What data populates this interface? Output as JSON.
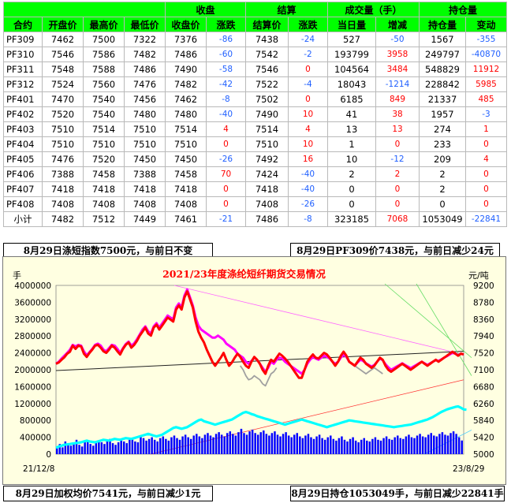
{
  "table": {
    "group_headers": {
      "close": "收盘",
      "settle": "结算",
      "volume": "成交量（手）",
      "oi": "持仓量"
    },
    "columns": [
      "合约",
      "开盘价",
      "最高价",
      "最低价",
      "收盘价",
      "涨跌",
      "结算价",
      "涨跌",
      "当日量",
      "增减",
      "持仓量",
      "变动"
    ],
    "rows": [
      [
        "PF309",
        "7462",
        "7500",
        "7322",
        "7376",
        "-86",
        "7438",
        "-24",
        "527",
        "-50",
        "1567",
        "-355"
      ],
      [
        "PF310",
        "7546",
        "7586",
        "7482",
        "7486",
        "-60",
        "7542",
        "-2",
        "193799",
        "3958",
        "249797",
        "-40870"
      ],
      [
        "PF311",
        "7548",
        "7588",
        "7486",
        "7490",
        "-58",
        "7546",
        "0",
        "104564",
        "3484",
        "548829",
        "11912"
      ],
      [
        "PF312",
        "7524",
        "7560",
        "7476",
        "7482",
        "-42",
        "7522",
        "-4",
        "18043",
        "-1214",
        "228842",
        "5985"
      ],
      [
        "PF401",
        "7470",
        "7540",
        "7456",
        "7462",
        "-8",
        "7502",
        "0",
        "6185",
        "849",
        "21337",
        "485"
      ],
      [
        "PF402",
        "7520",
        "7540",
        "7480",
        "7480",
        "-40",
        "7490",
        "10",
        "41",
        "38",
        "1957",
        "-3"
      ],
      [
        "PF403",
        "7510",
        "7514",
        "7510",
        "7514",
        "4",
        "7514",
        "4",
        "13",
        "13",
        "274",
        "1"
      ],
      [
        "PF404",
        "7510",
        "7510",
        "7510",
        "7510",
        "0",
        "7510",
        "10",
        "1",
        "0",
        "233",
        "0"
      ],
      [
        "PF405",
        "7476",
        "7520",
        "7450",
        "7450",
        "-26",
        "7492",
        "16",
        "10",
        "-12",
        "209",
        "4"
      ],
      [
        "PF406",
        "7388",
        "7458",
        "7388",
        "7458",
        "70",
        "7424",
        "-40",
        "2",
        "2",
        "2",
        "0"
      ],
      [
        "PF407",
        "7418",
        "7418",
        "7418",
        "7418",
        "0",
        "7418",
        "-40",
        "0",
        "0",
        "2",
        "0"
      ],
      [
        "PF408",
        "7408",
        "7408",
        "7408",
        "7408",
        "0",
        "7408",
        "-26",
        "0",
        "0",
        "0",
        "0"
      ],
      [
        "小计",
        "7482",
        "7512",
        "7449",
        "7461",
        "-21",
        "7486",
        "-8",
        "323185",
        "7068",
        "1053049",
        "-22841"
      ]
    ]
  },
  "captions": {
    "top_left": "8月29日涤短指数7500元，与前日不变",
    "top_right": "8月29日PF309价7438元，与前日减少24元",
    "bottom_left": "8月29日加权均价7541元，与前日减少1元",
    "bottom_right": "8月29日持仓1053049手，与前日减少22841手"
  },
  "chart_data": {
    "type": "line",
    "title": "2021/23年度涤纶短纤期货交易情况",
    "ylabel_left": "手",
    "ylabel_right": "元/吨",
    "x_start_label": "21/12/8",
    "x_end_label": "23/8/29",
    "ylim_left": [
      0,
      4000000
    ],
    "yticks_left": [
      "0",
      "400000",
      "800000",
      "1200000",
      "1600000",
      "2000000",
      "2400000",
      "2800000",
      "3200000",
      "3600000",
      "4000000"
    ],
    "ylim_right": [
      5000,
      9200
    ],
    "yticks_right": [
      "5000",
      "5420",
      "5840",
      "6260",
      "6680",
      "7100",
      "7520",
      "7940",
      "8360",
      "8780",
      "9200"
    ],
    "colors": {
      "price": "#ff0000",
      "settle_alt": "#ff00ff",
      "secondary": "#a0a0a0",
      "oi": "#00ffff",
      "volume": "#0000ff",
      "title": "#ff0000"
    },
    "series": [
      {
        "axis": "right",
        "values": [
          7250,
          7280,
          7350,
          7410,
          7500,
          7550,
          7700,
          7620,
          7700,
          7680,
          7500,
          7420,
          7520,
          7600,
          7700,
          7720,
          7650,
          7560,
          7520,
          7600,
          7700,
          7650,
          7560,
          7480,
          7620,
          7720,
          7780,
          7650,
          7720,
          7820,
          7950,
          8050,
          8150,
          8000,
          7950,
          8150,
          8220,
          8100,
          8200,
          8300,
          8400,
          8350,
          8300,
          8600,
          8700,
          8600,
          8900,
          9050,
          8850,
          8650,
          8300,
          8050,
          7900,
          7780,
          7600,
          7450,
          7300,
          7200,
          7300,
          7400,
          7520,
          7350,
          7200,
          7280,
          7400,
          7500,
          7420,
          7300,
          7200,
          7150,
          7300,
          7420,
          7350,
          7250,
          7100,
          7000,
          7200,
          7350,
          7300,
          7400,
          7500,
          7450,
          7380,
          7300,
          7200,
          7100,
          7000,
          6900,
          6900,
          7100,
          7300,
          7400,
          7480,
          7400,
          7380,
          7450,
          7520,
          7480,
          7400,
          7300,
          7200,
          7300,
          7450,
          7550,
          7450,
          7300,
          7250,
          7200,
          7300,
          7400,
          7350,
          7250,
          7200,
          7150,
          7200,
          7300,
          7400,
          7350,
          7200,
          7100,
          7050,
          7100,
          7150,
          7200,
          7250,
          7200,
          7150,
          7100,
          7150,
          7200,
          7250,
          7300,
          7250,
          7200,
          7250,
          7300,
          7350,
          7300,
          7350,
          7400,
          7450,
          7500,
          7550,
          7500,
          7450,
          7500,
          7480
        ]
      },
      {
        "axis": "right",
        "values": [
          7250,
          7300,
          7380,
          7450,
          7520,
          7600,
          7720,
          7680,
          7720,
          7700,
          7560,
          7460,
          7540,
          7620,
          7720,
          7750,
          7700,
          7600,
          7560,
          7640,
          7720,
          7700,
          7620,
          7520,
          7640,
          7740,
          7800,
          7700,
          7760,
          7860,
          7980,
          8100,
          8180,
          8060,
          8000,
          8180,
          8260,
          8150,
          8250,
          8350,
          8450,
          8400,
          8360,
          8650,
          8750,
          8650,
          8950,
          9100,
          8900,
          8700,
          8400,
          8200,
          8100,
          8050,
          8000,
          7950,
          7900,
          7900,
          7950,
          7900,
          7850,
          7750,
          7700,
          7650,
          7600,
          7500,
          7450,
          7400,
          7300,
          7250,
          7320,
          7400,
          7350,
          7250,
          7150,
          7050,
          7150,
          7300,
          7250,
          7350,
          7400,
          7380,
          7300,
          7250,
          7200,
          7150,
          7100,
          7050,
          7000,
          7100,
          7250,
          7350,
          7420,
          7380,
          7350,
          7400,
          7450,
          7420,
          7380,
          7300,
          7250,
          7300,
          7400,
          7480,
          7420,
          7300,
          7250,
          7200,
          7280,
          7350,
          7320,
          7260,
          7220,
          7180,
          7220,
          7300,
          7380,
          7340,
          7240,
          7160,
          7100,
          7140,
          7180,
          7220,
          7260,
          7220,
          7180,
          7140,
          7180,
          7220,
          7260,
          7300,
          7260,
          7220,
          7260,
          7300,
          7340,
          7320,
          7360,
          7400,
          7440,
          7480,
          7520,
          7500,
          7460,
          7500,
          7480
        ]
      },
      {
        "axis": "right",
        "values": [
          null,
          null,
          null,
          null,
          null,
          null,
          null,
          null,
          null,
          null,
          null,
          null,
          null,
          null,
          null,
          null,
          null,
          null,
          null,
          null,
          null,
          null,
          null,
          null,
          null,
          null,
          null,
          null,
          null,
          null,
          null,
          null,
          null,
          null,
          null,
          null,
          null,
          null,
          null,
          null,
          null,
          null,
          null,
          null,
          null,
          null,
          null,
          null,
          null,
          null,
          null,
          null,
          null,
          null,
          null,
          null,
          null,
          null,
          null,
          null,
          null,
          null,
          null,
          null,
          null,
          null,
          7200,
          7100,
          6950,
          6850,
          6880,
          6950,
          6900,
          6850,
          6750,
          6700,
          6850,
          7000,
          7050,
          7150,
          null,
          null,
          null,
          null,
          null,
          null,
          null,
          null,
          null,
          null,
          null,
          null,
          null,
          null,
          null,
          null,
          null,
          null,
          null,
          null,
          null,
          null,
          null,
          null,
          null,
          null,
          null,
          7200,
          7150,
          7100,
          7050,
          7000,
          7050,
          7100,
          7150,
          7100,
          7050,
          7000,
          null,
          null,
          null,
          null,
          null,
          null,
          null,
          null,
          null,
          null,
          null,
          null,
          null,
          null,
          null,
          null,
          null,
          null,
          null,
          null,
          null,
          null,
          null,
          null,
          null,
          null,
          null,
          null,
          null
        ]
      },
      {
        "axis": "left",
        "values": [
          150000,
          180000,
          200000,
          220000,
          230000,
          240000,
          250000,
          260000,
          270000,
          280000,
          300000,
          320000,
          300000,
          290000,
          280000,
          300000,
          320000,
          340000,
          330000,
          320000,
          340000,
          360000,
          350000,
          340000,
          360000,
          380000,
          370000,
          360000,
          380000,
          400000,
          420000,
          440000,
          460000,
          480000,
          460000,
          440000,
          420000,
          440000,
          460000,
          500000,
          540000,
          580000,
          620000,
          640000,
          620000,
          600000,
          620000,
          640000,
          680000,
          720000,
          760000,
          800000,
          820000,
          780000,
          760000,
          740000,
          720000,
          700000,
          720000,
          740000,
          760000,
          780000,
          800000,
          820000,
          860000,
          900000,
          940000,
          980000,
          1000000,
          980000,
          950000,
          930000,
          900000,
          880000,
          860000,
          840000,
          820000,
          800000,
          780000,
          760000,
          740000,
          720000,
          700000,
          720000,
          740000,
          760000,
          780000,
          800000,
          820000,
          800000,
          780000,
          760000,
          740000,
          720000,
          700000,
          680000,
          660000,
          640000,
          660000,
          680000,
          700000,
          720000,
          740000,
          760000,
          780000,
          800000,
          790000,
          780000,
          770000,
          760000,
          750000,
          740000,
          730000,
          720000,
          710000,
          700000,
          690000,
          680000,
          670000,
          660000,
          650000,
          640000,
          650000,
          660000,
          670000,
          680000,
          690000,
          700000,
          720000,
          740000,
          760000,
          780000,
          800000,
          820000,
          850000,
          880000,
          920000,
          960000,
          1000000,
          1030000,
          1060000,
          1080000,
          1100000,
          1120000,
          1130000,
          1100000,
          1060000,
          1053049
        ]
      }
    ],
    "volume_bars": [
      180000,
      240000,
      160000,
      300000,
      220000,
      200000,
      260000,
      340000,
      220000,
      180000,
      280000,
      300000,
      240000,
      200000,
      260000,
      320000,
      280000,
      240000,
      300000,
      360000,
      260000,
      220000,
      280000,
      320000,
      300000,
      260000,
      340000,
      380000,
      300000,
      280000,
      420000,
      380000,
      320000,
      360000,
      400000,
      340000,
      300000,
      380000,
      420000,
      360000,
      320000,
      400000,
      440000,
      380000,
      340000,
      420000,
      460000,
      400000,
      360000,
      440000,
      480000,
      420000,
      380000,
      460000,
      500000,
      440000,
      400000,
      480000,
      520000,
      460000,
      420000,
      500000,
      540000,
      480000,
      440000,
      520000,
      600000,
      500000,
      460000,
      540000,
      580000,
      500000,
      460000,
      520000,
      560000,
      480000,
      440000,
      500000,
      540000,
      460000,
      420000,
      480000,
      520000,
      440000,
      400000,
      460000,
      500000,
      420000,
      380000,
      440000,
      480000,
      400000,
      360000,
      420000,
      460000,
      380000,
      340000,
      400000,
      440000,
      360000,
      320000,
      380000,
      420000,
      340000,
      300000,
      360000,
      400000,
      320000,
      280000,
      340000,
      380000,
      320000,
      300000,
      360000,
      400000,
      340000,
      320000,
      380000,
      420000,
      360000,
      340000,
      400000,
      440000,
      380000,
      360000,
      420000,
      460000,
      400000,
      380000,
      440000,
      480000,
      420000,
      400000,
      460000,
      500000,
      440000,
      420000,
      480000,
      520000,
      460000,
      440000,
      500000,
      540000,
      480000,
      400000,
      323185
    ]
  }
}
